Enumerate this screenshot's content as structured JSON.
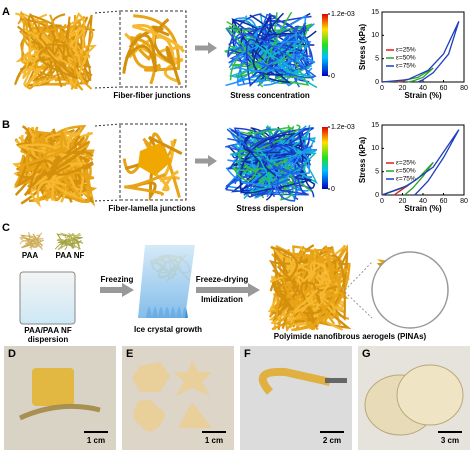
{
  "panels": {
    "A": {
      "letter": "A",
      "caption_zoom": "Fiber-fiber junctions",
      "caption_stress": "Stress concentration",
      "colorbar": {
        "ticks": [
          {
            "value": 0.0012,
            "label": "1.2e-03"
          },
          0
        ]
      },
      "chart_data": {
        "type": "line",
        "xlabel": "Strain (%)",
        "ylabel": "Stress (kPa)",
        "xlim": [
          0,
          80
        ],
        "ylim": [
          0,
          15
        ],
        "xticks": [
          0,
          20,
          40,
          60,
          80
        ],
        "yticks": [
          0,
          5,
          10,
          15
        ],
        "series": [
          {
            "name": "ε=25%",
            "color": "#e31a1c",
            "x": [
              0,
              10,
              20,
              25,
              20,
              15
            ],
            "values": [
              0,
              0.1,
              0.3,
              0.6,
              0.1,
              0
            ]
          },
          {
            "name": "ε=50%",
            "color": "#2ca02c",
            "x": [
              0,
              20,
              35,
              50,
              40,
              30,
              25
            ],
            "values": [
              0,
              0.3,
              1,
              3,
              1,
              0.2,
              0
            ]
          },
          {
            "name": "ε=75%",
            "color": "#1f3fbf",
            "x": [
              0,
              25,
              45,
              60,
              75,
              65,
              50,
              40,
              35
            ],
            "values": [
              0,
              0.5,
              2.5,
              6,
              13,
              6,
              2,
              0.5,
              0
            ]
          }
        ]
      }
    },
    "B": {
      "letter": "B",
      "caption_zoom": "Fiber-lamella junctions",
      "caption_stress": "Stress dispersion",
      "colorbar": {
        "ticks": [
          {
            "value": 0.0012,
            "label": "1.2e-03"
          },
          0
        ]
      },
      "chart_data": {
        "type": "line",
        "xlabel": "Strain (%)",
        "ylabel": "Stress (kPa)",
        "xlim": [
          0,
          80
        ],
        "ylim": [
          0,
          15
        ],
        "xticks": [
          0,
          20,
          40,
          60,
          80
        ],
        "yticks": [
          0,
          5,
          10,
          15
        ],
        "series": [
          {
            "name": "ε=25%",
            "color": "#e31a1c",
            "x": [
              0,
              10,
              25,
              15,
              12
            ],
            "values": [
              0,
              0.8,
              2,
              0.5,
              0
            ]
          },
          {
            "name": "ε=50%",
            "color": "#2ca02c",
            "x": [
              0,
              20,
              35,
              50,
              40,
              30,
              22
            ],
            "values": [
              0,
              1.5,
              3.5,
              7,
              4,
              1.5,
              0
            ]
          },
          {
            "name": "ε=75%",
            "color": "#1f3fbf",
            "x": [
              0,
              25,
              50,
              75,
              60,
              45,
              32
            ],
            "values": [
              0,
              2,
              6,
              14,
              8,
              3,
              0
            ]
          }
        ]
      }
    },
    "C": {
      "letter": "C",
      "paa": "PAA",
      "paa_nf": "PAA NF",
      "dispersion": [
        "PAA/PAA NF",
        "dispersion"
      ],
      "freezing": "Freezing",
      "ice": "Ice crystal growth",
      "freeze_drying": "Freeze-drying",
      "imidization": "Imidization",
      "pinas": "Polyimide nanofibrous aerogels (PINAs)"
    },
    "photos": [
      {
        "letter": "D",
        "scale": "1 cm"
      },
      {
        "letter": "E",
        "scale": "1 cm"
      },
      {
        "letter": "F",
        "scale": "2 cm"
      },
      {
        "letter": "G",
        "scale": "3 cm"
      }
    ]
  }
}
